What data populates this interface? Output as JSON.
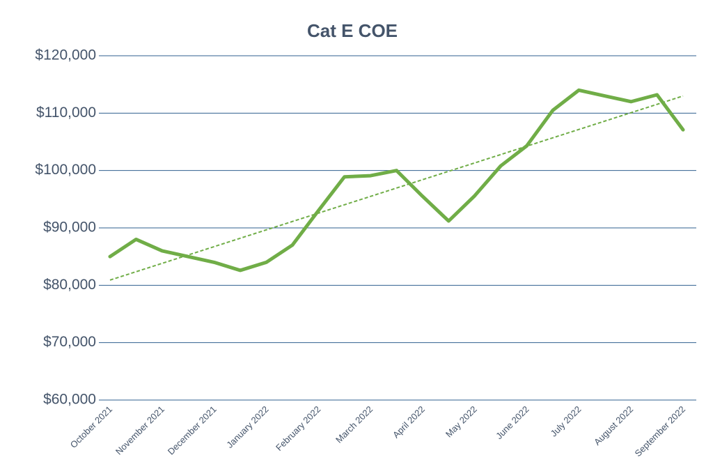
{
  "chart_data": {
    "type": "line",
    "title": "Cat E COE",
    "categories": [
      "October 2021",
      null,
      "November 2021",
      null,
      "December 2021",
      null,
      "January 2022",
      null,
      "February 2022",
      null,
      "March 2022",
      null,
      "April 2022",
      null,
      "May 2022",
      null,
      "June 2022",
      null,
      "July 2022",
      null,
      "August 2022",
      null,
      "September 2022"
    ],
    "series": [
      {
        "color": "#70ad47",
        "values": [
          85000,
          88000,
          86000,
          85000,
          84000,
          82600,
          84000,
          87000,
          93000,
          98900,
          99100,
          100000,
          95500,
          91200,
          95600,
          100800,
          104300,
          110500,
          114000,
          113000,
          112000,
          113200,
          107100
        ]
      }
    ],
    "trendline": true,
    "ylim": [
      60000,
      120000
    ],
    "yticks": [
      {
        "value": 60000,
        "label": "$60,000"
      },
      {
        "value": 70000,
        "label": "$70,000"
      },
      {
        "value": 80000,
        "label": "$80,000"
      },
      {
        "value": 90000,
        "label": "$90,000"
      },
      {
        "value": 100000,
        "label": "$100,000"
      },
      {
        "value": 110000,
        "label": "$110,000"
      },
      {
        "value": 120000,
        "label": "$120,000"
      }
    ],
    "grid": true
  }
}
